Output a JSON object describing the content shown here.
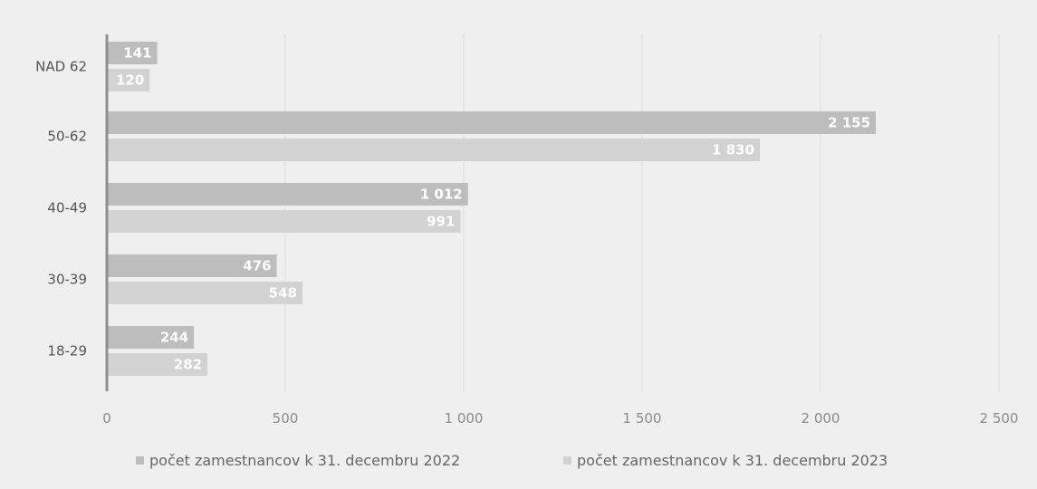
{
  "chart_data": {
    "type": "bar",
    "orientation": "horizontal",
    "categories": [
      "NAD 62",
      "50-62",
      "40-49",
      "30-39",
      "18-29"
    ],
    "series": [
      {
        "name": "počet zamestnancov k 31. decembru 2022",
        "values": [
          141,
          2155,
          1012,
          476,
          244
        ],
        "labels": [
          "141",
          "2 155",
          "1 012",
          "476",
          "244"
        ],
        "color": "#bdbdbd"
      },
      {
        "name": "počet zamestnancov k 31. decembru 2023",
        "values": [
          120,
          1830,
          991,
          548,
          282
        ],
        "labels": [
          "120",
          "1 830",
          "991",
          "548",
          "282"
        ],
        "color": "#d2d2d2"
      }
    ],
    "xticks": [
      {
        "value": 0,
        "label": "0"
      },
      {
        "value": 500,
        "label": "500"
      },
      {
        "value": 1000,
        "label": "1 000"
      },
      {
        "value": 1500,
        "label": "1 500"
      },
      {
        "value": 2000,
        "label": "2 000"
      },
      {
        "value": 2500,
        "label": "2 500"
      }
    ],
    "xlim": [
      0,
      2500
    ],
    "grid": true,
    "legend_position": "bottom"
  }
}
